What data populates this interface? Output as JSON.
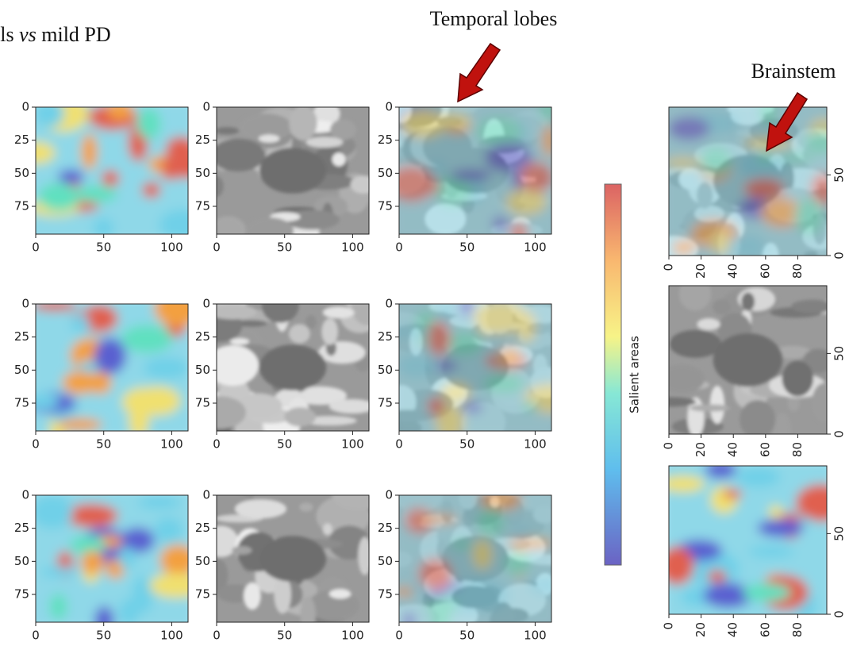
{
  "title": {
    "prefix": "Controls ",
    "italic": "vs",
    "suffix": " mild PD"
  },
  "annotations": {
    "temporal": "Temporal lobes",
    "brainstem": "Brainstem"
  },
  "colorbar": {
    "label": "Salient areas"
  },
  "grid_axes": {
    "xlim": [
      0,
      112
    ],
    "ylim": [
      0,
      96
    ],
    "xticks": [
      0,
      50,
      100
    ],
    "yticks": [
      0,
      25,
      50,
      75
    ]
  },
  "side_axes": {
    "xlim": [
      0,
      98
    ],
    "ylim": [
      0,
      92
    ],
    "xticks": [
      0,
      20,
      40,
      60,
      80
    ],
    "yticks": [
      0,
      50
    ]
  }
}
